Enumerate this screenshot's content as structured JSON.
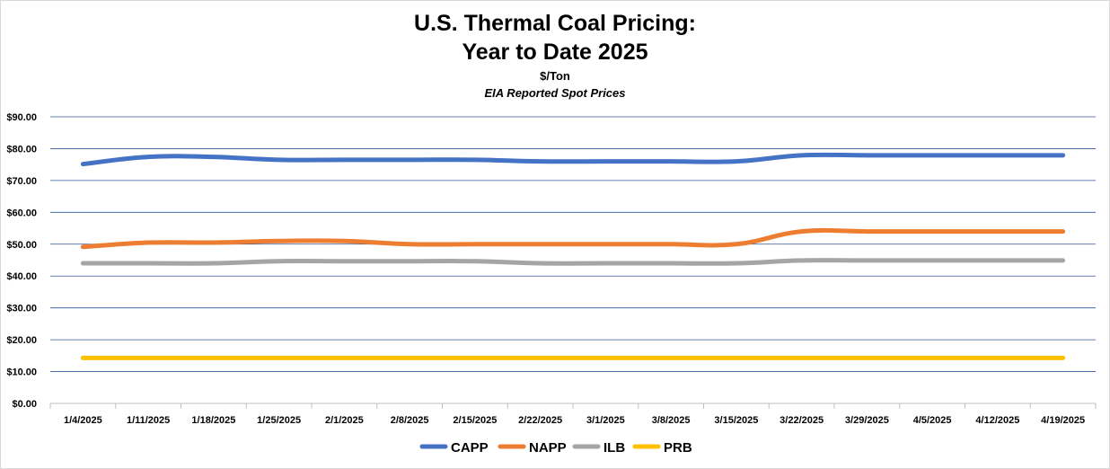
{
  "chart_data": {
    "type": "line",
    "title": "U.S. Thermal Coal Pricing:",
    "title_line2": "Year to Date 2025",
    "subtitle": "$/Ton",
    "subtitle2": "EIA Reported Spot Prices",
    "categories": [
      "1/4/2025",
      "1/11/2025",
      "1/18/2025",
      "1/25/2025",
      "2/1/2025",
      "2/8/2025",
      "2/15/2025",
      "2/22/2025",
      "3/1/2025",
      "3/8/2025",
      "3/15/2025",
      "3/22/2025",
      "3/29/2025",
      "4/5/2025",
      "4/12/2025",
      "4/19/2025"
    ],
    "y_ticks": [
      "$0.00",
      "$10.00",
      "$20.00",
      "$30.00",
      "$40.00",
      "$50.00",
      "$60.00",
      "$70.00",
      "$80.00",
      "$90.00"
    ],
    "ylim": [
      0,
      90
    ],
    "grid": true,
    "legend_position": "bottom",
    "series": [
      {
        "name": "CAPP",
        "color": "#4472C4",
        "values": [
          75.15,
          77.4,
          77.4,
          76.5,
          76.5,
          76.5,
          76.5,
          76.0,
          76.0,
          76.0,
          76.0,
          77.9,
          77.9,
          77.9,
          77.9,
          77.9
        ]
      },
      {
        "name": "NAPP",
        "color": "#ED7D31",
        "values": [
          49.15,
          50.5,
          50.5,
          51.0,
          51.0,
          50.0,
          50.0,
          50.0,
          50.0,
          50.0,
          50.0,
          54.0,
          54.0,
          54.0,
          54.0,
          54.0
        ]
      },
      {
        "name": "ILB",
        "color": "#A5A5A5",
        "values": [
          44.0,
          44.0,
          44.0,
          44.65,
          44.65,
          44.65,
          44.65,
          44.0,
          44.0,
          44.0,
          44.0,
          44.9,
          44.9,
          44.9,
          44.9,
          44.9
        ]
      },
      {
        "name": "PRB",
        "color": "#FFC000",
        "values": [
          14.3,
          14.3,
          14.3,
          14.3,
          14.3,
          14.3,
          14.3,
          14.3,
          14.3,
          14.3,
          14.3,
          14.3,
          14.3,
          14.3,
          14.3,
          14.3
        ]
      }
    ]
  }
}
